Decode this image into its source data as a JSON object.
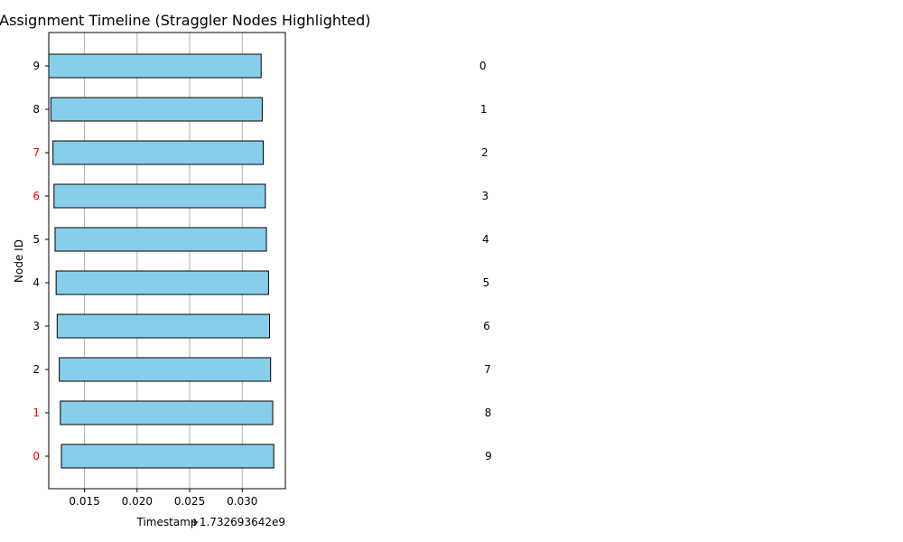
{
  "chart_data": {
    "type": "bar",
    "orientation": "horizontal",
    "title": "Task Assignment Timeline (Straggler Nodes Highlighted)",
    "xlabel": "Timestamp",
    "ylabel": "Node ID",
    "x_offset_label": "+1.732693642e9",
    "xlim": [
      0.0116,
      0.0341
    ],
    "x_ticks": [
      0.015,
      0.02,
      0.025,
      0.03
    ],
    "x_tick_labels": [
      "0.015",
      "0.020",
      "0.025",
      "0.030"
    ],
    "grid": "x-major",
    "categories": [
      "0",
      "1",
      "2",
      "3",
      "4",
      "5",
      "6",
      "7",
      "8",
      "9"
    ],
    "straggler_nodes": [
      "0",
      "1",
      "6",
      "7"
    ],
    "start": [
      0.0128,
      0.0127,
      0.0126,
      0.0124,
      0.0123,
      0.0122,
      0.0121,
      0.012,
      0.0118,
      0.0116
    ],
    "end": [
      0.033,
      0.0329,
      0.0327,
      0.0326,
      0.0325,
      0.0323,
      0.0322,
      0.032,
      0.0319,
      0.0318
    ],
    "bar_labels": [
      "9",
      "8",
      "7",
      "6",
      "5",
      "4",
      "3",
      "2",
      "1",
      "0"
    ],
    "bar_label_x": [
      0.0528,
      0.0527,
      0.0526,
      0.0524,
      0.0523,
      0.0522,
      0.0521,
      0.052,
      0.0518,
      0.0516
    ],
    "colors": {
      "bar_fill": "#87ceeb",
      "bar_edge": "#000000",
      "straggler_tick": "#ff0000",
      "normal_tick": "#000000",
      "grid": "#b0b0b0"
    }
  }
}
